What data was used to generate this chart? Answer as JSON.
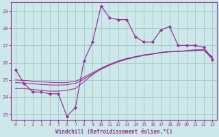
{
  "xlabel": "Windchill (Refroidissement éolien,°C)",
  "background_color": "#cce8e8",
  "line_color": "#993399",
  "grid_color": "#aacccc",
  "xlim": [
    -0.5,
    23.5
  ],
  "ylim": [
    22.7,
    29.5
  ],
  "yticks": [
    23,
    24,
    25,
    26,
    27,
    28,
    29
  ],
  "xticks": [
    0,
    1,
    2,
    3,
    4,
    5,
    6,
    7,
    8,
    9,
    10,
    11,
    12,
    13,
    14,
    15,
    16,
    17,
    18,
    19,
    20,
    21,
    22,
    23
  ],
  "hours": [
    0,
    1,
    2,
    3,
    4,
    5,
    6,
    7,
    8,
    9,
    10,
    11,
    12,
    13,
    14,
    15,
    16,
    17,
    18,
    19,
    20,
    21,
    22,
    23
  ],
  "windchill": [
    25.6,
    24.8,
    24.3,
    24.3,
    24.2,
    24.2,
    22.9,
    23.4,
    26.1,
    27.2,
    29.3,
    28.6,
    28.5,
    28.5,
    27.5,
    27.2,
    27.2,
    27.9,
    28.1,
    27.0,
    27.0,
    27.0,
    26.9,
    26.2
  ],
  "line_a": [
    24.5,
    24.5,
    24.45,
    24.4,
    24.35,
    24.35,
    24.4,
    24.5,
    24.9,
    25.3,
    25.65,
    25.9,
    26.1,
    26.25,
    26.35,
    26.45,
    26.5,
    26.6,
    26.65,
    26.65,
    26.7,
    26.75,
    26.75,
    26.2
  ],
  "line_b": [
    24.85,
    24.82,
    24.78,
    24.74,
    24.71,
    24.7,
    24.72,
    24.8,
    25.05,
    25.35,
    25.62,
    25.85,
    26.05,
    26.2,
    26.32,
    26.42,
    26.5,
    26.58,
    26.63,
    26.65,
    26.68,
    26.7,
    26.72,
    26.3
  ],
  "line_c": [
    25.0,
    24.97,
    24.93,
    24.89,
    24.86,
    24.84,
    24.85,
    24.92,
    25.15,
    25.42,
    25.68,
    25.9,
    26.08,
    26.22,
    26.34,
    26.44,
    26.52,
    26.59,
    26.64,
    26.66,
    26.69,
    26.72,
    26.74,
    26.35
  ]
}
